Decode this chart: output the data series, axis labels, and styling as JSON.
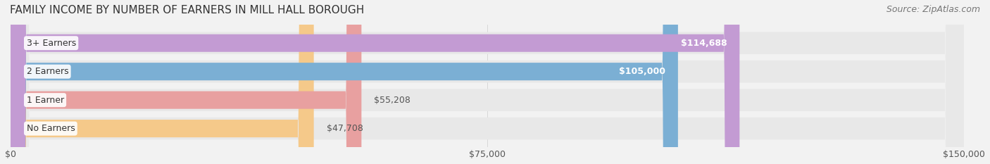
{
  "title": "FAMILY INCOME BY NUMBER OF EARNERS IN MILL HALL BOROUGH",
  "source": "Source: ZipAtlas.com",
  "categories": [
    "No Earners",
    "1 Earner",
    "2 Earners",
    "3+ Earners"
  ],
  "values": [
    47708,
    55208,
    105000,
    114688
  ],
  "bar_colors": [
    "#f5c98a",
    "#e8a0a0",
    "#7bafd4",
    "#c39bd3"
  ],
  "label_colors": [
    "#555555",
    "#555555",
    "#ffffff",
    "#ffffff"
  ],
  "xlim": [
    0,
    150000
  ],
  "xticks": [
    0,
    75000,
    150000
  ],
  "xtick_labels": [
    "$0",
    "$75,000",
    "$150,000"
  ],
  "value_labels": [
    "$47,708",
    "$55,208",
    "$105,000",
    "$114,688"
  ],
  "background_color": "#f2f2f2",
  "bar_background_color": "#e8e8e8",
  "title_fontsize": 11,
  "source_fontsize": 9,
  "label_fontsize": 9,
  "value_fontsize": 9,
  "tick_fontsize": 9
}
